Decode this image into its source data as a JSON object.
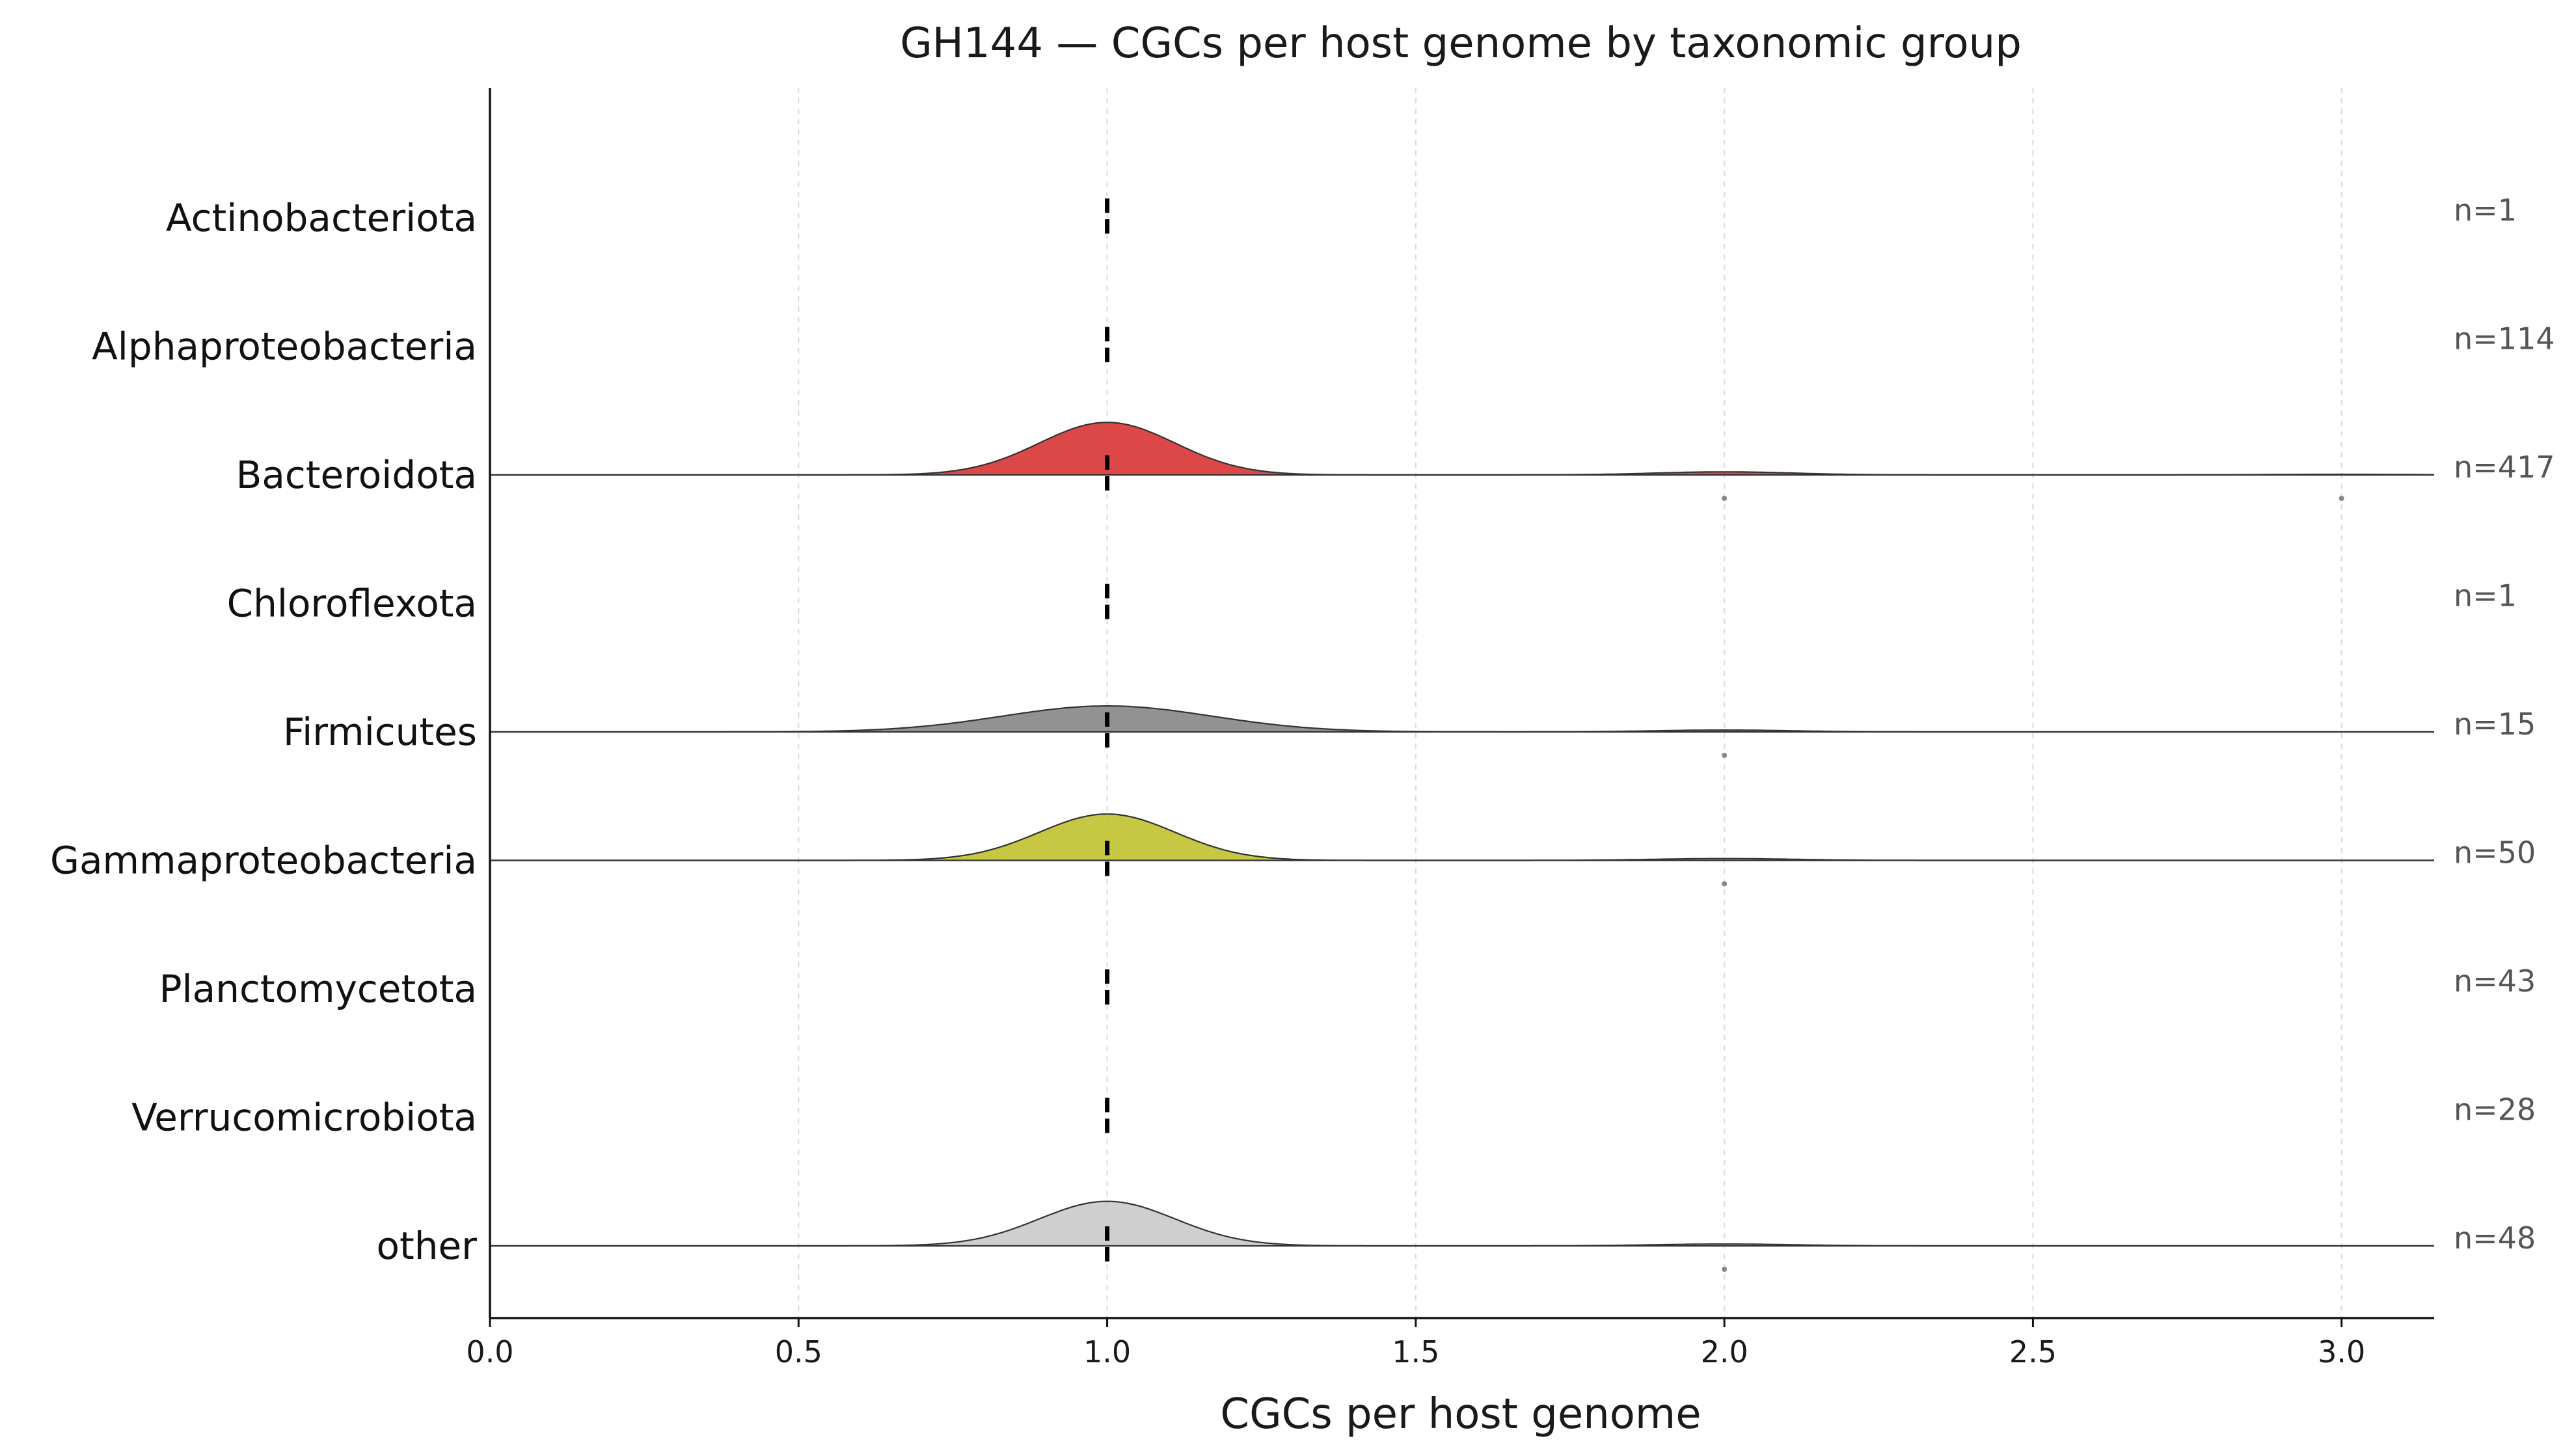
{
  "chart_data": {
    "type": "ridgeline",
    "title": "GH144 — CGCs per host genome by taxonomic group",
    "xlabel": "CGCs per host genome",
    "ylabel": "",
    "xlim": [
      0,
      3.15
    ],
    "xticks": [
      0.0,
      0.5,
      1.0,
      1.5,
      2.0,
      2.5,
      3.0
    ],
    "xtick_labels": [
      "0.0",
      "0.5",
      "1.0",
      "1.5",
      "2.0",
      "2.5",
      "3.0"
    ],
    "grid": "x dashed",
    "median_marker": "dashed vertical line",
    "groups": [
      {
        "name": "Actinobacteriota",
        "n": 1,
        "n_label": "n=1",
        "median": 1.0,
        "density": false,
        "color": null,
        "outliers": []
      },
      {
        "name": "Alphaproteobacteria",
        "n": 114,
        "n_label": "n=114",
        "median": 1.0,
        "density": false,
        "color": null,
        "outliers": []
      },
      {
        "name": "Bacteroidota",
        "n": 417,
        "n_label": "n=417",
        "median": 1.0,
        "density": true,
        "color": "#d62728",
        "peak_height": 0.85,
        "secondary": [
          {
            "x": 2.0,
            "height": 0.05
          },
          {
            "x": 3.0,
            "height": 0.01
          }
        ],
        "outliers": [
          2.0,
          3.0
        ]
      },
      {
        "name": "Chloroflexota",
        "n": 1,
        "n_label": "n=1",
        "median": 1.0,
        "density": false,
        "color": null,
        "outliers": []
      },
      {
        "name": "Firmicutes",
        "n": 15,
        "n_label": "n=15",
        "median": 1.0,
        "density": true,
        "color": "#7f7f7f",
        "peak_height": 0.42,
        "secondary": [
          {
            "x": 2.0,
            "height": 0.03
          }
        ],
        "outliers": [
          2.0
        ]
      },
      {
        "name": "Gammaproteobacteria",
        "n": 50,
        "n_label": "n=50",
        "median": 1.0,
        "density": true,
        "color": "#bcbd22",
        "peak_height": 0.75,
        "secondary": [
          {
            "x": 2.0,
            "height": 0.03
          }
        ],
        "outliers": [
          2.0
        ]
      },
      {
        "name": "Planctomycetota",
        "n": 43,
        "n_label": "n=43",
        "median": 1.0,
        "density": false,
        "color": null,
        "outliers": []
      },
      {
        "name": "Verrucomicrobiota",
        "n": 28,
        "n_label": "n=28",
        "median": 1.0,
        "density": false,
        "color": null,
        "outliers": []
      },
      {
        "name": "other",
        "n": 48,
        "n_label": "n=48",
        "median": 1.0,
        "density": true,
        "color": "#c7c7c7",
        "peak_height": 0.72,
        "secondary": [
          {
            "x": 2.0,
            "height": 0.03
          }
        ],
        "outliers": [
          2.0
        ]
      }
    ]
  }
}
